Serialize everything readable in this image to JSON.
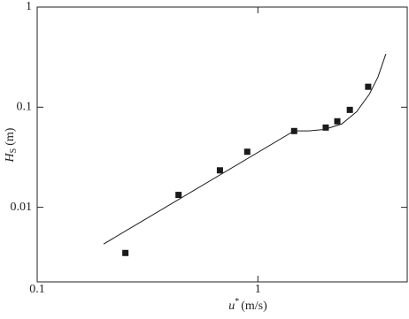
{
  "chart_data": {
    "type": "scatter",
    "x_label": {
      "symbol": "u",
      "superscript": "*",
      "unit": "(m/s)"
    },
    "y_label": {
      "symbol": "H",
      "subscript": "S",
      "unit": "(m)"
    },
    "xscale": "log",
    "yscale": "log",
    "xlim": [
      0.1,
      4.75
    ],
    "ylim": [
      0.0018,
      1
    ],
    "xticks": [
      0.1,
      1
    ],
    "yticks": [
      0.01,
      0.1,
      1
    ],
    "series": [
      {
        "kind": "markers",
        "color": "#1a1a1a",
        "x": [
          0.251,
          0.437,
          0.673,
          0.895,
          1.46,
          2.03,
          2.29,
          2.61,
          3.16
        ],
        "values": [
          0.0035,
          0.0133,
          0.0234,
          0.0359,
          0.0578,
          0.0626,
          0.0723,
          0.094,
          0.16
        ]
      },
      {
        "kind": "line",
        "color": "#1a1a1a",
        "x": [
          0.2,
          1.46,
          1.7,
          2.0,
          2.4,
          2.8,
          3.2,
          3.5,
          3.8
        ],
        "values": [
          0.0043,
          0.058,
          0.058,
          0.06,
          0.068,
          0.09,
          0.135,
          0.2,
          0.34
        ]
      }
    ]
  }
}
